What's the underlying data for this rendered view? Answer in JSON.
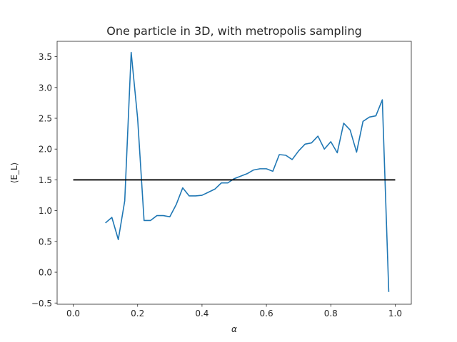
{
  "chart_data": {
    "type": "line",
    "title": "One particle in 3D, with metropolis sampling",
    "xlabel": "α",
    "ylabel": "⟨E_L⟩",
    "xlim": [
      -0.05,
      1.05
    ],
    "ylim": [
      -0.52,
      3.75
    ],
    "xticks": [
      0.0,
      0.2,
      0.4,
      0.6,
      0.8,
      1.0
    ],
    "xtick_labels": [
      "0.0",
      "0.2",
      "0.4",
      "0.6",
      "0.8",
      "1.0"
    ],
    "yticks": [
      -0.5,
      0.0,
      0.5,
      1.0,
      1.5,
      2.0,
      2.5,
      3.0,
      3.5
    ],
    "ytick_labels": [
      "−0.5",
      "0.0",
      "0.5",
      "1.0",
      "1.5",
      "2.0",
      "2.5",
      "3.0",
      "3.5"
    ],
    "grid": false,
    "series": [
      {
        "color": "#1f77b4",
        "x": [
          0.1,
          0.12,
          0.14,
          0.16,
          0.18,
          0.2,
          0.22,
          0.24,
          0.26,
          0.28,
          0.3,
          0.32,
          0.34,
          0.36,
          0.38,
          0.4,
          0.42,
          0.44,
          0.46,
          0.48,
          0.5,
          0.52,
          0.54,
          0.56,
          0.58,
          0.6,
          0.62,
          0.64,
          0.66,
          0.68,
          0.7,
          0.72,
          0.74,
          0.76,
          0.78,
          0.8,
          0.82,
          0.84,
          0.86,
          0.88,
          0.9,
          0.92,
          0.94,
          0.96,
          0.98
        ],
        "y": [
          0.8,
          0.89,
          0.53,
          1.16,
          3.57,
          2.5,
          0.84,
          0.84,
          0.92,
          0.92,
          0.9,
          1.1,
          1.37,
          1.24,
          1.24,
          1.25,
          1.3,
          1.35,
          1.45,
          1.45,
          1.52,
          1.56,
          1.6,
          1.66,
          1.68,
          1.68,
          1.64,
          1.91,
          1.9,
          1.83,
          1.97,
          2.08,
          2.1,
          2.21,
          2.0,
          2.12,
          1.94,
          2.42,
          2.31,
          1.95,
          2.45,
          2.52,
          2.54,
          2.8,
          -0.32
        ]
      },
      {
        "color": "#000000",
        "x": [
          0.0,
          1.0
        ],
        "y": [
          1.5,
          1.5
        ]
      }
    ]
  }
}
